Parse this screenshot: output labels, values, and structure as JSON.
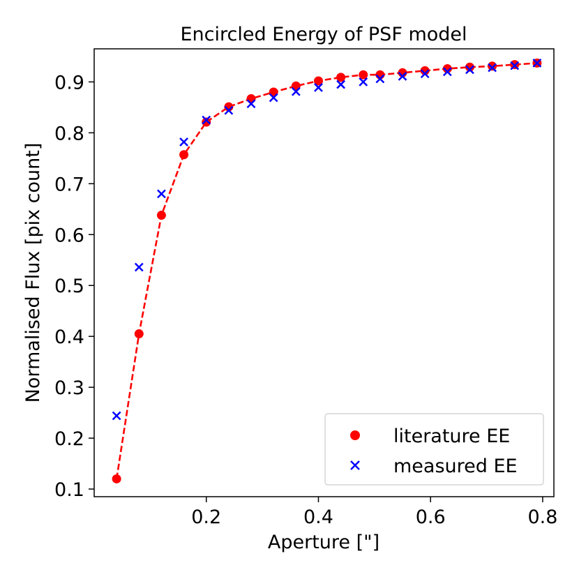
{
  "chart_data": {
    "type": "scatter",
    "title": "Encircled Energy of PSF model",
    "xlabel": "Aperture [\"]",
    "ylabel": "Normalised Flux [pix count]",
    "xlim": [
      0.0,
      0.82
    ],
    "ylim": [
      0.085,
      0.965
    ],
    "xticks": [
      0.2,
      0.4,
      0.6,
      0.8
    ],
    "xtick_labels": [
      "0.2",
      "0.4",
      "0.6",
      "0.8"
    ],
    "yticks": [
      0.1,
      0.2,
      0.3,
      0.4,
      0.5,
      0.6,
      0.7,
      0.8,
      0.9
    ],
    "ytick_labels": [
      "0.1",
      "0.2",
      "0.3",
      "0.4",
      "0.5",
      "0.6",
      "0.7",
      "0.8",
      "0.9"
    ],
    "grid": false,
    "legend_position": "lower-right",
    "x": [
      0.04,
      0.08,
      0.12,
      0.16,
      0.2,
      0.24,
      0.28,
      0.32,
      0.36,
      0.4,
      0.44,
      0.48,
      0.51,
      0.55,
      0.59,
      0.63,
      0.67,
      0.71,
      0.75,
      0.79
    ],
    "series": [
      {
        "name": "literature EE",
        "marker": "circle",
        "color": "#ff0000",
        "dashed_line": true,
        "values": [
          0.12,
          0.405,
          0.638,
          0.757,
          0.821,
          0.851,
          0.867,
          0.88,
          0.892,
          0.902,
          0.909,
          0.914,
          0.914,
          0.918,
          0.922,
          0.926,
          0.929,
          0.931,
          0.934,
          0.937
        ]
      },
      {
        "name": "measured EE",
        "marker": "x",
        "color": "#0000ff",
        "dashed_line": false,
        "values": [
          0.244,
          0.536,
          0.68,
          0.782,
          0.825,
          0.844,
          0.857,
          0.869,
          0.881,
          0.889,
          0.895,
          0.9,
          0.906,
          0.911,
          0.916,
          0.92,
          0.924,
          0.928,
          0.932,
          0.937
        ]
      }
    ]
  }
}
